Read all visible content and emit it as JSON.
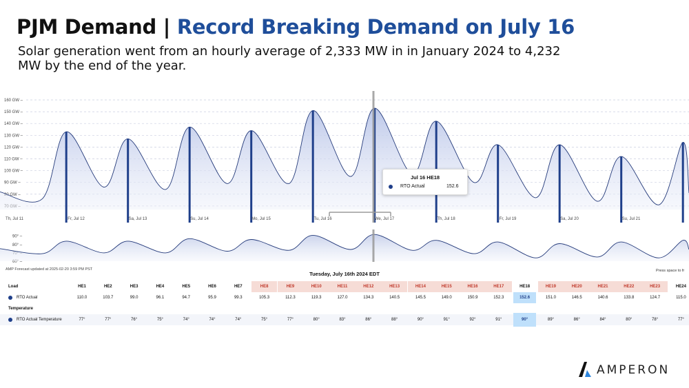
{
  "title_prefix": "PJM Demand |",
  "title_highlight": "Record Breaking Demand on July 16",
  "subtitle": "Solar generation went from an hourly average of 2,333 MW in in January 2024 to 4,232 MW by the end of the year.",
  "colors": {
    "accent": "#1f4e9a",
    "series": "#1f3f8a",
    "highlight_header": "#f6dcd6",
    "selected": "#bfe0fb"
  },
  "chart_data": [
    {
      "type": "area",
      "y_ticks": [
        "160 GW",
        "150 GW",
        "140 GW",
        "130 GW",
        "120 GW",
        "110 GW",
        "100 GW",
        "90 GW",
        "80 GW",
        "70 GW"
      ],
      "ylim": [
        67,
        160
      ],
      "x_labels": [
        "Th, Jul 11",
        "Fr, Jul 12",
        "Sa, Jul 13",
        "Su, Jul 14",
        "Mo, Jul 15",
        "Tu, Jul 16",
        "We, Jul 17",
        "Th, Jul 18",
        "Fr, Jul 19",
        "Sa, Jul 20",
        "Su, Jul 21"
      ],
      "series": [
        {
          "name": "RTO Actual",
          "daily_peak": [
            133,
            127,
            137,
            134,
            151,
            153,
            142,
            122,
            122,
            112,
            124
          ],
          "daily_min": [
            76,
            86,
            84,
            89,
            89,
            95,
            97,
            90,
            77,
            74,
            71
          ]
        }
      ],
      "grid": true
    },
    {
      "type": "area",
      "y_ticks": [
        "90°",
        "80°",
        "70°",
        "60°"
      ],
      "ylim": [
        60,
        93
      ],
      "series": [
        {
          "name": "RTO Actual Temperature",
          "daily_peak": [
            84,
            84,
            87,
            86,
            91,
            92,
            85,
            83,
            81,
            83,
            85
          ],
          "daily_min": [
            69,
            70,
            70,
            72,
            73,
            74,
            73,
            69,
            64,
            65,
            64
          ]
        }
      ]
    }
  ],
  "tooltip": {
    "title": "Jul 16 HE18",
    "series": "RTO Actual",
    "value": "152.6"
  },
  "footnote": "AMP Forecast updated at 2025-02-20 3:59 PM PST",
  "hint": "Press space to fr",
  "table_title": "Tuesday, July 16th 2024 EDT",
  "table": {
    "load_label": "Load",
    "temp_label": "Temperature",
    "hours": [
      "HE1",
      "HE2",
      "HE3",
      "HE4",
      "HE5",
      "HE6",
      "HE7",
      "HE8",
      "HE9",
      "HE10",
      "HE11",
      "HE12",
      "HE13",
      "HE14",
      "HE15",
      "HE16",
      "HE17",
      "HE18",
      "HE19",
      "HE20",
      "HE21",
      "HE22",
      "HE23",
      "HE24"
    ],
    "load_row_label": "RTO Actual",
    "load_values": [
      "110.0",
      "103.7",
      "99.0",
      "96.1",
      "94.7",
      "95.9",
      "99.3",
      "105.3",
      "112.3",
      "119.3",
      "127.0",
      "134.3",
      "140.5",
      "145.5",
      "149.0",
      "150.9",
      "152.3",
      "152.6",
      "151.0",
      "146.5",
      "140.6",
      "133.8",
      "124.7",
      "115.0"
    ],
    "temp_row_label": "RTO Actual Temperature",
    "temp_values": [
      "77°",
      "77°",
      "76°",
      "75°",
      "74°",
      "74°",
      "74°",
      "75°",
      "77°",
      "80°",
      "83°",
      "86°",
      "88°",
      "90°",
      "91°",
      "92°",
      "91°",
      "90°",
      "89°",
      "86°",
      "84°",
      "80°",
      "78°",
      "77°"
    ]
  },
  "logo_text": "AMPERON"
}
